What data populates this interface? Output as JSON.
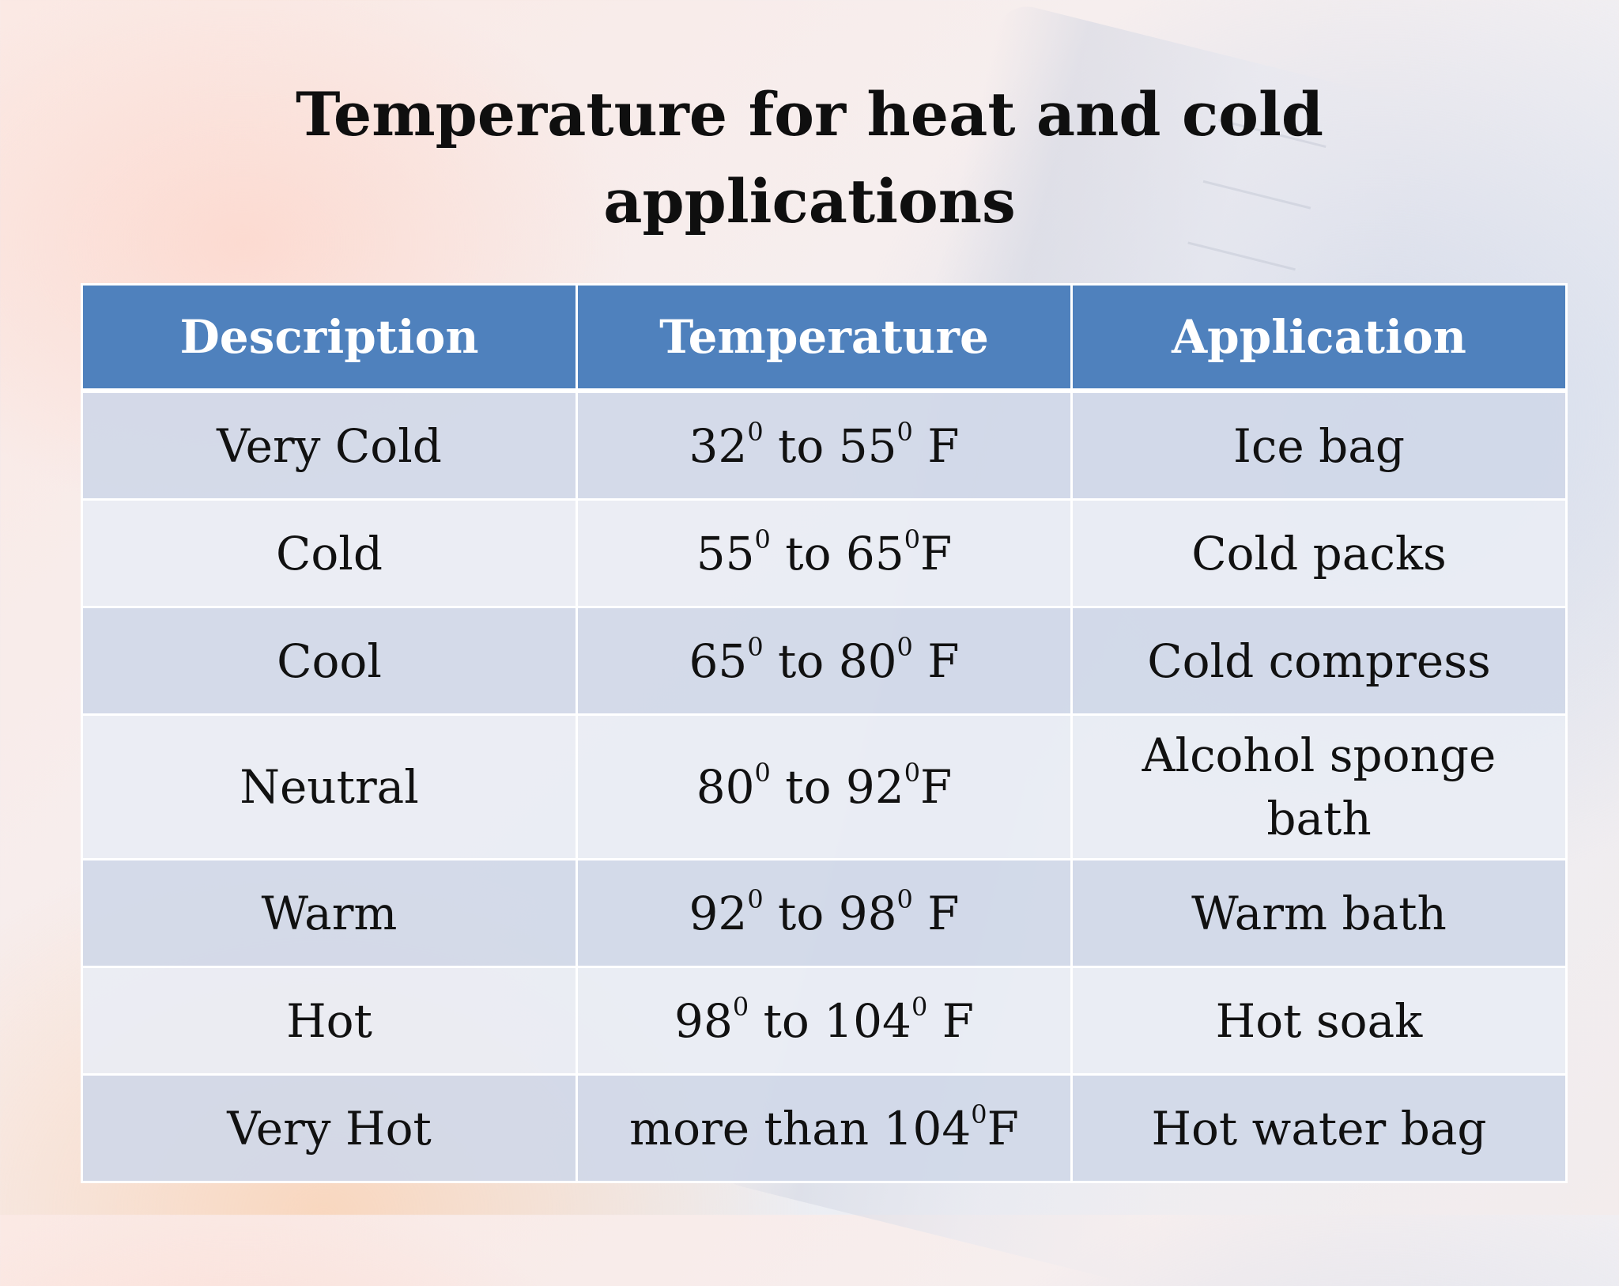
{
  "slide": {
    "title_line1": "Temperature for heat and cold",
    "title_line2": "applications"
  },
  "table": {
    "headers": [
      "Description",
      "Temperature",
      "Application"
    ],
    "rows": [
      {
        "description": "Very Cold",
        "temp": {
          "low": "32",
          "low_sup": "0",
          "mid": " to 55",
          "high_sup": "0",
          "unit": " F"
        },
        "application": "Ice bag"
      },
      {
        "description": "Cold",
        "temp": {
          "low": "55",
          "low_sup": "0",
          "mid": " to 65",
          "high_sup": "0",
          "unit": "F"
        },
        "application": "Cold packs"
      },
      {
        "description": "Cool",
        "temp": {
          "low": "65",
          "low_sup": "0",
          "mid": " to 80",
          "high_sup": "0",
          "unit": " F"
        },
        "application": "Cold compress"
      },
      {
        "description": "Neutral",
        "temp": {
          "low": "80",
          "low_sup": "0",
          "mid": " to 92",
          "high_sup": "0",
          "unit": "F"
        },
        "application_line1": "Alcohol sponge",
        "application_line2": "bath"
      },
      {
        "description": "Warm",
        "temp": {
          "low": "92",
          "low_sup": "0",
          "mid": " to 98",
          "high_sup": "0",
          "unit": " F"
        },
        "application": "Warm bath"
      },
      {
        "description": "Hot",
        "temp": {
          "low": "98",
          "low_sup": "0",
          "mid": " to 104",
          "high_sup": "0",
          "unit": " F"
        },
        "application": "Hot soak"
      },
      {
        "description": "Very Hot",
        "temp": {
          "prefix": "more than 104",
          "sup": "0",
          "unit": "F"
        },
        "application": "Hot water bag"
      }
    ]
  },
  "colors": {
    "header_bg": "#4f81bd",
    "row_odd_bg": "#d0d8e8",
    "row_even_bg": "#e9edf4"
  }
}
